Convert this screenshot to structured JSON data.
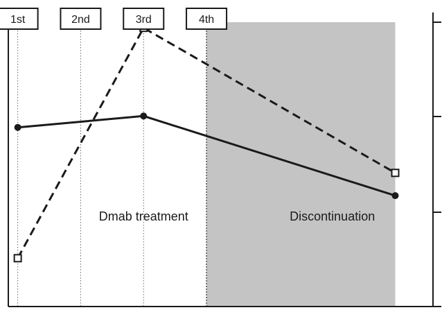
{
  "chart_data": {
    "type": "line",
    "injection_labels": [
      "1st",
      "2nd",
      "3rd",
      "4th"
    ],
    "annotations": [
      {
        "text": "Dmab treatment",
        "x": 2.0
      },
      {
        "text": "Discontinuation",
        "x": 5.0
      }
    ],
    "shaded_region": {
      "x_start": 3.0,
      "x_end": 6.0,
      "color": "#c4c4c4"
    },
    "xlim": [
      -0.15,
      6.6
    ],
    "ylim": [
      0,
      10
    ],
    "grid": false,
    "legend": "none",
    "series": [
      {
        "style": "solid",
        "marker": "filled-circle",
        "color": "#1a1a1a",
        "x": [
          0,
          2,
          6
        ],
        "y": [
          6.3,
          6.7,
          3.9
        ]
      },
      {
        "style": "dashed",
        "marker": "open-square",
        "color": "#1a1a1a",
        "x": [
          0,
          2,
          6
        ],
        "y": [
          1.7,
          9.8,
          4.7
        ]
      }
    ]
  }
}
